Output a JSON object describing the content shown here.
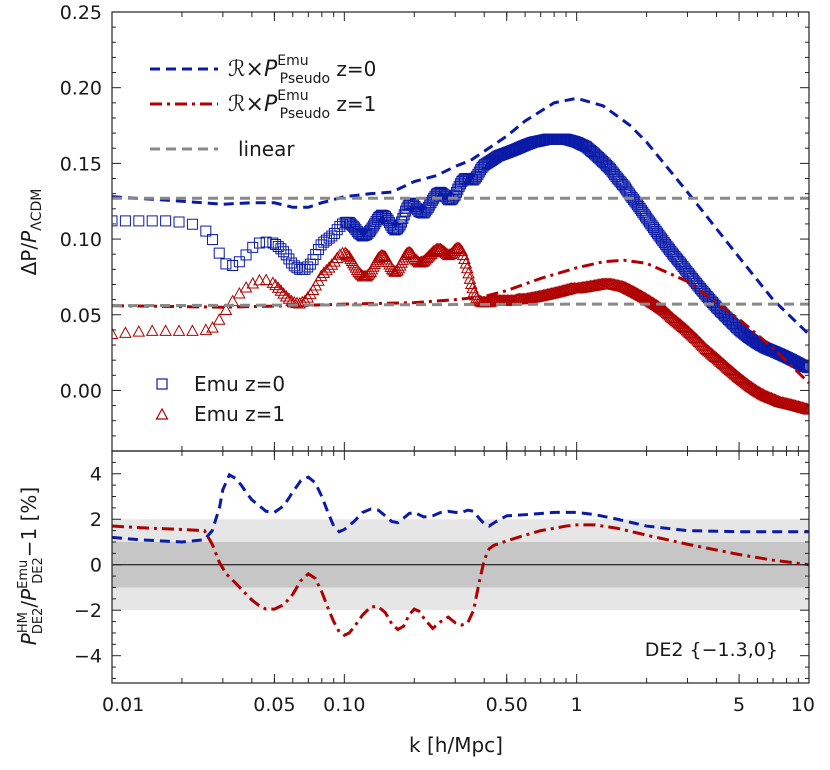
{
  "chart_data": [
    {
      "panel": "top",
      "type": "line",
      "xscale": "log",
      "xlim": [
        0.01,
        10
      ],
      "ylim": [
        -0.04,
        0.25
      ],
      "yticks": [
        "0.25",
        "0.20",
        "0.15",
        "0.10",
        "0.05",
        "0.00"
      ],
      "ytick_values": [
        0.25,
        0.2,
        0.15,
        0.1,
        0.05,
        0.0
      ],
      "ylabel": "ΔP/PΛCDM",
      "colors": {
        "blue": "#0a1aa8",
        "red": "#b00000",
        "gray": "#888888"
      },
      "legend_lines": [
        {
          "series": "rp_z0",
          "base": "ℛ×P",
          "sup": "Emu",
          "sub": "Pseudo",
          "tail": " z=0"
        },
        {
          "series": "rp_z1",
          "base": "ℛ×P",
          "sup": "Emu",
          "sub": "Pseudo",
          "tail": " z=1"
        },
        {
          "series": "linear",
          "label": "linear"
        }
      ],
      "legend_markers": [
        {
          "series": "emu_z0",
          "label": "Emu z=0"
        },
        {
          "series": "emu_z1",
          "label": "Emu z=1"
        }
      ],
      "series": [
        {
          "id": "rp_z0",
          "style": "dashed",
          "color": "blue",
          "x": [
            0.01,
            0.02,
            0.03,
            0.04,
            0.05,
            0.06,
            0.07,
            0.08,
            0.1,
            0.13,
            0.16,
            0.2,
            0.25,
            0.3,
            0.35,
            0.4,
            0.5,
            0.6,
            0.8,
            1.0,
            1.3,
            1.7,
            2.0,
            3.0,
            5.0,
            7.0,
            10.0
          ],
          "y": [
            0.128,
            0.125,
            0.123,
            0.124,
            0.124,
            0.121,
            0.121,
            0.124,
            0.128,
            0.13,
            0.131,
            0.138,
            0.142,
            0.148,
            0.152,
            0.158,
            0.168,
            0.178,
            0.19,
            0.193,
            0.188,
            0.175,
            0.164,
            0.131,
            0.088,
            0.06,
            0.037
          ]
        },
        {
          "id": "rp_z1",
          "style": "dashdot",
          "color": "red",
          "x": [
            0.01,
            0.03,
            0.06,
            0.1,
            0.2,
            0.3,
            0.4,
            0.5,
            0.7,
            1.0,
            1.3,
            1.6,
            2.0,
            3.0,
            5.0,
            7.0,
            10.0
          ],
          "y": [
            0.056,
            0.055,
            0.056,
            0.057,
            0.058,
            0.06,
            0.062,
            0.066,
            0.074,
            0.081,
            0.085,
            0.086,
            0.084,
            0.072,
            0.047,
            0.028,
            0.005
          ]
        },
        {
          "id": "linear",
          "style": "dashed",
          "color": "gray",
          "pieces": true,
          "pieces_data": [
            {
              "x": [
                0.01,
                0.5,
                1.0,
                10.0
              ],
              "y": [
                0.127,
                0.127,
                0.127,
                0.127
              ]
            },
            {
              "x": [
                0.01,
                1.0,
                10.0
              ],
              "y": [
                0.056,
                0.057,
                0.057
              ]
            }
          ]
        },
        {
          "id": "emu_z0",
          "style": "markers",
          "marker": "square",
          "color": "blue",
          "x": [
            0.01,
            0.012,
            0.014,
            0.016,
            0.018,
            0.02,
            0.022,
            0.024,
            0.026,
            0.027,
            0.028,
            0.03,
            0.032,
            0.034,
            0.036,
            0.038,
            0.04,
            0.042,
            0.045,
            0.048,
            0.05,
            0.053,
            0.056,
            0.06,
            0.064,
            0.068,
            0.072,
            0.076,
            0.08,
            0.085,
            0.09,
            0.095,
            0.1,
            0.105,
            0.11,
            0.115,
            0.12,
            0.125,
            0.13,
            0.135,
            0.14,
            0.145,
            0.15,
            0.155,
            0.16,
            0.165,
            0.17,
            0.175,
            0.18,
            0.185,
            0.19,
            0.195,
            0.2,
            0.21,
            0.22,
            0.23,
            0.24,
            0.25,
            0.26,
            0.27,
            0.28,
            0.29,
            0.3,
            0.31,
            0.32,
            0.33,
            0.34,
            0.35,
            0.36,
            0.37,
            0.38,
            0.39,
            0.4,
            0.42,
            0.44,
            0.46,
            0.48,
            0.5,
            0.52,
            0.54,
            0.56,
            0.58,
            0.6,
            0.65,
            0.7,
            0.75,
            0.8,
            0.85,
            0.9,
            0.95,
            1.0,
            1.1,
            1.2,
            1.3,
            1.4,
            1.5,
            1.6,
            1.7,
            1.8,
            1.9,
            2.0,
            2.2,
            2.4,
            2.6,
            2.8,
            3.0,
            3.3,
            3.6,
            4.0,
            4.5,
            5.0,
            5.5,
            6.0,
            6.5,
            7.0,
            7.5,
            8.0,
            8.5,
            9.0,
            9.5,
            10.0
          ],
          "y": [
            0.112,
            0.112,
            0.112,
            0.112,
            0.112,
            0.111,
            0.11,
            0.108,
            0.104,
            0.1,
            0.096,
            0.085,
            0.082,
            0.083,
            0.086,
            0.09,
            0.094,
            0.097,
            0.098,
            0.098,
            0.097,
            0.094,
            0.09,
            0.083,
            0.08,
            0.08,
            0.084,
            0.091,
            0.097,
            0.1,
            0.103,
            0.108,
            0.111,
            0.111,
            0.108,
            0.104,
            0.102,
            0.103,
            0.106,
            0.11,
            0.114,
            0.116,
            0.115,
            0.112,
            0.108,
            0.106,
            0.107,
            0.11,
            0.115,
            0.12,
            0.123,
            0.124,
            0.122,
            0.118,
            0.117,
            0.121,
            0.126,
            0.13,
            0.131,
            0.129,
            0.126,
            0.126,
            0.129,
            0.134,
            0.138,
            0.14,
            0.14,
            0.139,
            0.139,
            0.141,
            0.144,
            0.147,
            0.149,
            0.151,
            0.153,
            0.155,
            0.156,
            0.157,
            0.158,
            0.159,
            0.16,
            0.161,
            0.162,
            0.164,
            0.165,
            0.166,
            0.166,
            0.166,
            0.166,
            0.165,
            0.164,
            0.161,
            0.156,
            0.151,
            0.146,
            0.14,
            0.135,
            0.129,
            0.124,
            0.119,
            0.114,
            0.105,
            0.097,
            0.09,
            0.084,
            0.078,
            0.07,
            0.063,
            0.055,
            0.047,
            0.04,
            0.035,
            0.031,
            0.028,
            0.026,
            0.024,
            0.022,
            0.02,
            0.018,
            0.016,
            0.015
          ]
        },
        {
          "id": "emu_z1",
          "style": "markers",
          "marker": "triangle",
          "color": "red",
          "x": [
            0.01,
            0.012,
            0.014,
            0.016,
            0.018,
            0.02,
            0.022,
            0.024,
            0.026,
            0.027,
            0.028,
            0.03,
            0.032,
            0.034,
            0.036,
            0.038,
            0.04,
            0.042,
            0.045,
            0.048,
            0.05,
            0.053,
            0.056,
            0.06,
            0.064,
            0.068,
            0.072,
            0.076,
            0.08,
            0.085,
            0.09,
            0.095,
            0.1,
            0.105,
            0.11,
            0.115,
            0.12,
            0.125,
            0.13,
            0.135,
            0.14,
            0.145,
            0.15,
            0.155,
            0.16,
            0.165,
            0.17,
            0.175,
            0.18,
            0.185,
            0.19,
            0.195,
            0.2,
            0.21,
            0.22,
            0.23,
            0.24,
            0.25,
            0.26,
            0.27,
            0.28,
            0.29,
            0.3,
            0.31,
            0.32,
            0.33,
            0.34,
            0.35,
            0.36,
            0.37,
            0.38,
            0.39,
            0.4,
            0.42,
            0.44,
            0.46,
            0.48,
            0.5,
            0.52,
            0.54,
            0.56,
            0.58,
            0.6,
            0.65,
            0.7,
            0.75,
            0.8,
            0.85,
            0.9,
            0.95,
            1.0,
            1.1,
            1.2,
            1.3,
            1.4,
            1.5,
            1.6,
            1.7,
            1.8,
            1.9,
            2.0,
            2.2,
            2.4,
            2.6,
            2.8,
            3.0,
            3.3,
            3.6,
            4.0,
            4.5,
            5.0,
            5.5,
            6.0,
            6.5,
            7.0,
            7.5,
            8.0,
            8.5,
            9.0,
            9.5,
            10.0
          ],
          "y": [
            0.037,
            0.038,
            0.039,
            0.039,
            0.039,
            0.039,
            0.039,
            0.039,
            0.04,
            0.041,
            0.043,
            0.05,
            0.056,
            0.061,
            0.065,
            0.068,
            0.07,
            0.072,
            0.073,
            0.072,
            0.07,
            0.066,
            0.062,
            0.058,
            0.057,
            0.059,
            0.064,
            0.07,
            0.076,
            0.08,
            0.084,
            0.089,
            0.091,
            0.088,
            0.083,
            0.078,
            0.075,
            0.075,
            0.078,
            0.083,
            0.087,
            0.089,
            0.088,
            0.084,
            0.08,
            0.078,
            0.079,
            0.083,
            0.087,
            0.09,
            0.091,
            0.09,
            0.087,
            0.084,
            0.085,
            0.088,
            0.091,
            0.093,
            0.093,
            0.091,
            0.089,
            0.09,
            0.093,
            0.094,
            0.092,
            0.086,
            0.079,
            0.071,
            0.065,
            0.061,
            0.059,
            0.058,
            0.058,
            0.058,
            0.059,
            0.059,
            0.059,
            0.059,
            0.059,
            0.059,
            0.06,
            0.06,
            0.06,
            0.061,
            0.062,
            0.063,
            0.064,
            0.065,
            0.066,
            0.067,
            0.067,
            0.068,
            0.069,
            0.07,
            0.07,
            0.069,
            0.068,
            0.066,
            0.064,
            0.062,
            0.06,
            0.056,
            0.052,
            0.047,
            0.043,
            0.039,
            0.033,
            0.027,
            0.021,
            0.014,
            0.008,
            0.003,
            -0.001,
            -0.004,
            -0.006,
            -0.008,
            -0.009,
            -0.01,
            -0.011,
            -0.012,
            -0.013
          ]
        }
      ]
    },
    {
      "panel": "bottom",
      "type": "line",
      "xscale": "log",
      "xlim": [
        0.01,
        10
      ],
      "ylim": [
        -5.2,
        5.0
      ],
      "yticks": [
        "4",
        "2",
        "0",
        "−2",
        "−4"
      ],
      "ytick_values": [
        4,
        2,
        0,
        -2,
        -4
      ],
      "xticks": [
        "0.01",
        "0.05",
        "0.10",
        "0.50",
        "1",
        "5",
        "10"
      ],
      "xtick_values": [
        0.01,
        0.05,
        0.1,
        0.5,
        1,
        5,
        10
      ],
      "xlabel": "k [h/Mpc]",
      "ylabel_parts": {
        "p1": "P",
        "p1_sup": "HM",
        "p1_sub": "DE2",
        "slash": "/",
        "p2": "P",
        "p2_sup": "Emu",
        "p2_sub": "DE2",
        "tail": "−1 [%]"
      },
      "bands": [
        {
          "lo": -2,
          "hi": 2,
          "color": "#e6e6e6"
        },
        {
          "lo": -1,
          "hi": 1,
          "color": "#c6c6c6"
        }
      ],
      "annotation": "DE2 {−1.3,0}",
      "series": [
        {
          "id": "ratio_z0",
          "style": "dashed",
          "color": "blue",
          "x": [
            0.01,
            0.013,
            0.016,
            0.02,
            0.025,
            0.027,
            0.029,
            0.03,
            0.032,
            0.034,
            0.036,
            0.038,
            0.04,
            0.043,
            0.046,
            0.05,
            0.055,
            0.06,
            0.065,
            0.07,
            0.075,
            0.08,
            0.085,
            0.09,
            0.095,
            0.1,
            0.11,
            0.12,
            0.13,
            0.14,
            0.15,
            0.16,
            0.17,
            0.18,
            0.19,
            0.2,
            0.22,
            0.24,
            0.26,
            0.28,
            0.3,
            0.32,
            0.34,
            0.36,
            0.38,
            0.4,
            0.42,
            0.45,
            0.5,
            0.6,
            0.7,
            0.8,
            0.9,
            1.0,
            1.2,
            1.5,
            2.0,
            3.0,
            5.0,
            7.0,
            10.0
          ],
          "y": [
            1.2,
            1.1,
            1.05,
            1.0,
            1.1,
            1.5,
            2.5,
            3.3,
            3.95,
            3.8,
            3.5,
            3.15,
            2.85,
            2.6,
            2.35,
            2.3,
            2.6,
            3.2,
            3.7,
            3.85,
            3.6,
            3.0,
            2.3,
            1.7,
            1.45,
            1.55,
            1.9,
            2.3,
            2.45,
            2.4,
            2.15,
            1.9,
            1.85,
            2.05,
            2.25,
            2.3,
            2.1,
            2.15,
            2.3,
            2.35,
            2.3,
            2.3,
            2.4,
            2.35,
            2.05,
            1.8,
            1.7,
            1.9,
            2.15,
            2.2,
            2.25,
            2.3,
            2.3,
            2.3,
            2.2,
            2.0,
            1.7,
            1.5,
            1.45,
            1.45,
            1.45
          ]
        },
        {
          "id": "ratio_z1",
          "style": "dashdot",
          "color": "red",
          "x": [
            0.01,
            0.015,
            0.02,
            0.025,
            0.027,
            0.029,
            0.031,
            0.034,
            0.037,
            0.04,
            0.043,
            0.046,
            0.05,
            0.055,
            0.06,
            0.065,
            0.07,
            0.075,
            0.08,
            0.085,
            0.09,
            0.095,
            0.1,
            0.105,
            0.11,
            0.12,
            0.13,
            0.14,
            0.15,
            0.16,
            0.17,
            0.18,
            0.19,
            0.2,
            0.21,
            0.22,
            0.24,
            0.26,
            0.28,
            0.3,
            0.32,
            0.34,
            0.36,
            0.38,
            0.4,
            0.42,
            0.44,
            0.5,
            0.6,
            0.7,
            0.8,
            0.9,
            1.0,
            1.2,
            1.5,
            2.0,
            3.0,
            5.0,
            7.0,
            10.0
          ],
          "y": [
            1.7,
            1.6,
            1.55,
            1.5,
            0.9,
            0.1,
            -0.4,
            -0.8,
            -1.2,
            -1.55,
            -1.8,
            -1.95,
            -1.95,
            -1.75,
            -1.3,
            -0.7,
            -0.4,
            -0.6,
            -1.2,
            -1.9,
            -2.5,
            -2.95,
            -3.1,
            -3.0,
            -2.75,
            -2.2,
            -1.85,
            -1.85,
            -2.1,
            -2.6,
            -2.85,
            -2.7,
            -2.2,
            -1.95,
            -2.05,
            -2.35,
            -2.8,
            -2.5,
            -2.3,
            -2.55,
            -2.65,
            -2.55,
            -2.0,
            -0.8,
            0.2,
            0.7,
            0.85,
            1.05,
            1.3,
            1.5,
            1.6,
            1.7,
            1.75,
            1.75,
            1.6,
            1.3,
            0.9,
            0.45,
            0.2,
            0.0
          ]
        }
      ]
    }
  ]
}
